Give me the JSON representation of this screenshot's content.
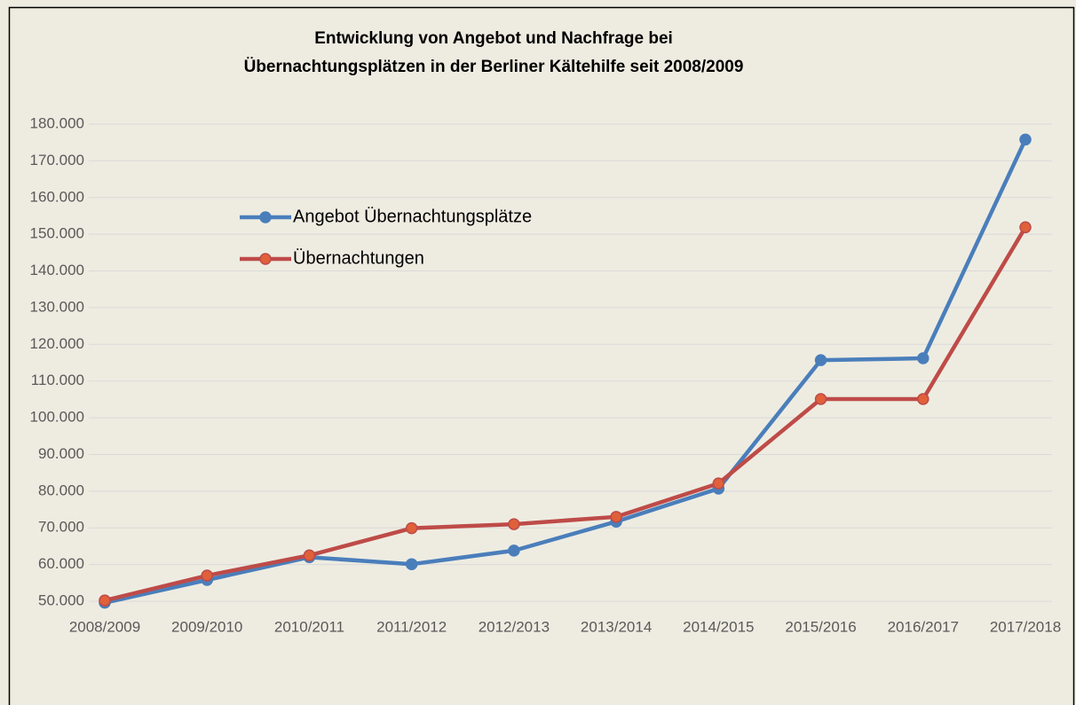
{
  "chart_data": {
    "type": "line",
    "title": [
      "Entwicklung  von Angebot und Nachfrage bei",
      "Übernachtungsplätzen in der Berliner Kältehilfe seit 2008/2009"
    ],
    "categories": [
      "2008/2009",
      "2009/2010",
      "2010/2011",
      "2011/2012",
      "2012/2013",
      "2013/2014",
      "2014/2015",
      "2015/2016",
      "2016/2017",
      "2017/2018"
    ],
    "series": [
      {
        "name": "Angebot Übernachtungsplätze",
        "color": "#4a7ebb",
        "values": [
          49600,
          55800,
          62000,
          60100,
          63800,
          71700,
          80700,
          115700,
          116200,
          175800
        ]
      },
      {
        "name": "Übernachtungen",
        "color": "#be4b48",
        "values": [
          50200,
          57000,
          62500,
          69900,
          71000,
          73000,
          82100,
          105100,
          105100,
          151900
        ]
      }
    ],
    "ylim": [
      50000,
      180000
    ],
    "yticks": [
      {
        "value": 50000,
        "label": "50.000"
      },
      {
        "value": 60000,
        "label": "60.000"
      },
      {
        "value": 70000,
        "label": "70.000"
      },
      {
        "value": 80000,
        "label": "80.000"
      },
      {
        "value": 90000,
        "label": "90.000"
      },
      {
        "value": 100000,
        "label": "100.000"
      },
      {
        "value": 110000,
        "label": "110.000"
      },
      {
        "value": 120000,
        "label": "120.000"
      },
      {
        "value": 130000,
        "label": "130.000"
      },
      {
        "value": 140000,
        "label": "140.000"
      },
      {
        "value": 150000,
        "label": "150.000"
      },
      {
        "value": 160000,
        "label": "160.000"
      },
      {
        "value": 170000,
        "label": "170.000"
      },
      {
        "value": 180000,
        "label": "180.000"
      }
    ],
    "grid": true,
    "legend": "inside"
  }
}
